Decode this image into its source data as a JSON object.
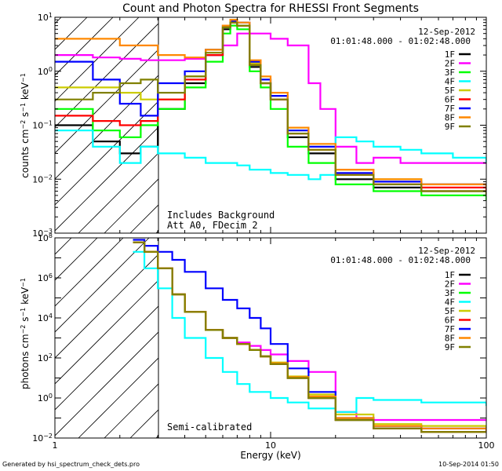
{
  "title": "Count and Photon Spectra for RHESSI Front Segments",
  "footer_left": "Generated by hsi_spectrum_check_dets.pro",
  "footer_right": "10-Sep-2014 01:50",
  "series_colors": {
    "1F": "#000000",
    "2F": "#ff00ff",
    "3F": "#00ff00",
    "4F": "#00ffff",
    "5F": "#cccc00",
    "6F": "#ff0000",
    "7F": "#0000ff",
    "8F": "#ff8800",
    "9F": "#808000"
  },
  "chart_data": [
    {
      "type": "line",
      "title": "Count and Photon Spectra for RHESSI Front Segments",
      "xlabel": "Energy (keV)",
      "ylabel": "counts cm^-2 s^-1 keV^-1",
      "xscale": "log",
      "yscale": "log",
      "xlim": [
        1,
        100
      ],
      "ylim": [
        0.001,
        10
      ],
      "x_ticks": [
        "1",
        "10",
        "100"
      ],
      "y_ticks": [
        "10^-3",
        "10^-2",
        "10^-1",
        "10^0",
        "10^1"
      ],
      "date": "12-Sep-2012",
      "time_range": "01:01:48.000 - 01:02:48.000",
      "annotations": [
        "Includes Background",
        "Att A0, FDecim 2"
      ],
      "shaded_region_keV": [
        1,
        3
      ],
      "legend": [
        "1F",
        "2F",
        "3F",
        "4F",
        "5F",
        "6F",
        "7F",
        "8F",
        "9F"
      ],
      "legend_position": "top-right",
      "series": [
        {
          "name": "1F",
          "x": [
            1,
            1.5,
            2,
            2.5,
            3,
            4,
            5,
            6,
            6.5,
            7,
            8,
            9,
            10,
            12,
            15,
            20,
            30,
            50,
            100
          ],
          "values": [
            0.1,
            0.05,
            0.03,
            0.04,
            0.2,
            0.6,
            2,
            6,
            8,
            7,
            1.2,
            0.6,
            0.3,
            0.06,
            0.03,
            0.01,
            0.007,
            0.006,
            0.005
          ]
        },
        {
          "name": "2F",
          "x": [
            1,
            1.5,
            2,
            2.5,
            3,
            4,
            5,
            6,
            7,
            8,
            10,
            12,
            15,
            17,
            20,
            25,
            30,
            40,
            50,
            70,
            100
          ],
          "values": [
            2,
            1.8,
            1.7,
            1.6,
            1.6,
            1.7,
            2,
            3,
            5,
            5,
            4,
            3,
            0.6,
            0.2,
            0.04,
            0.02,
            0.025,
            0.02,
            0.02,
            0.02,
            0.02
          ]
        },
        {
          "name": "3F",
          "x": [
            1,
            1.5,
            2,
            2.5,
            3,
            4,
            5,
            6,
            6.5,
            7,
            8,
            9,
            10,
            12,
            15,
            20,
            30,
            50,
            100
          ],
          "values": [
            0.2,
            0.08,
            0.06,
            0.1,
            0.2,
            0.5,
            1.5,
            5,
            7,
            6,
            1,
            0.5,
            0.2,
            0.04,
            0.02,
            0.008,
            0.006,
            0.005,
            0.004
          ]
        },
        {
          "name": "4F",
          "x": [
            1,
            1.5,
            2,
            2.5,
            3,
            4,
            5,
            6,
            7,
            8,
            10,
            12,
            15,
            17,
            20,
            25,
            30,
            40,
            50,
            70,
            100
          ],
          "values": [
            0.08,
            0.04,
            0.02,
            0.04,
            0.03,
            0.025,
            0.02,
            0.02,
            0.018,
            0.015,
            0.013,
            0.012,
            0.01,
            0.012,
            0.06,
            0.05,
            0.04,
            0.035,
            0.03,
            0.025,
            0.02
          ]
        },
        {
          "name": "5F",
          "x": [
            1,
            1.5,
            2,
            2.5,
            3,
            4,
            5,
            6,
            6.5,
            7,
            8,
            9,
            10,
            12,
            15,
            20,
            30,
            50,
            100
          ],
          "values": [
            0.5,
            0.5,
            0.4,
            0.3,
            0.3,
            0.8,
            2.5,
            7,
            8,
            7,
            1.4,
            0.7,
            0.35,
            0.08,
            0.04,
            0.015,
            0.01,
            0.008,
            0.007
          ]
        },
        {
          "name": "6F",
          "x": [
            1,
            1.5,
            2,
            2.5,
            3,
            4,
            5,
            6,
            6.5,
            7,
            8,
            9,
            10,
            12,
            15,
            20,
            30,
            50,
            100
          ],
          "values": [
            0.15,
            0.12,
            0.1,
            0.12,
            0.3,
            0.7,
            2,
            6.5,
            8,
            7,
            1.3,
            0.6,
            0.3,
            0.07,
            0.035,
            0.012,
            0.008,
            0.007,
            0.006
          ]
        },
        {
          "name": "7F",
          "x": [
            1,
            1.5,
            2,
            2.5,
            3,
            4,
            5,
            6,
            6.5,
            7,
            8,
            9,
            10,
            12,
            15,
            20,
            30,
            50,
            100
          ],
          "values": [
            1.5,
            0.7,
            0.25,
            0.15,
            0.6,
            1,
            2.5,
            7,
            8.5,
            8,
            1.5,
            0.7,
            0.35,
            0.08,
            0.04,
            0.013,
            0.009,
            0.008,
            0.007
          ]
        },
        {
          "name": "8F",
          "x": [
            1,
            1.5,
            2,
            2.5,
            3,
            4,
            5,
            6,
            6.5,
            7,
            8,
            9,
            10,
            12,
            15,
            20,
            30,
            50,
            100
          ],
          "values": [
            4,
            4,
            3,
            3,
            2,
            1.8,
            2.5,
            7,
            9,
            8,
            1.6,
            0.8,
            0.4,
            0.09,
            0.045,
            0.015,
            0.01,
            0.008,
            0.007
          ]
        },
        {
          "name": "9F",
          "x": [
            1,
            1.5,
            2,
            2.5,
            3,
            4,
            5,
            6,
            6.5,
            7,
            8,
            9,
            10,
            12,
            15,
            20,
            30,
            50,
            100
          ],
          "values": [
            0.3,
            0.4,
            0.6,
            0.7,
            0.4,
            0.8,
            2.2,
            6.5,
            8,
            7,
            1.3,
            0.6,
            0.3,
            0.07,
            0.035,
            0.012,
            0.008,
            0.006,
            0.005
          ]
        }
      ]
    },
    {
      "type": "line",
      "xlabel": "Energy (keV)",
      "ylabel": "photons cm^-2 s^-1 keV^-1",
      "xscale": "log",
      "yscale": "log",
      "xlim": [
        1,
        100
      ],
      "ylim": [
        0.01,
        100000000
      ],
      "x_ticks": [
        "1",
        "10",
        "100"
      ],
      "y_ticks": [
        "10^-2",
        "10^0",
        "10^2",
        "10^4",
        "10^6",
        "10^8"
      ],
      "date": "12-Sep-2012",
      "time_range": "01:01:48.000 - 01:02:48.000",
      "annotations": [
        "Semi-calibrated"
      ],
      "shaded_region_keV": [
        1,
        3
      ],
      "legend": [
        "1F",
        "2F",
        "3F",
        "4F",
        "5F",
        "6F",
        "7F",
        "8F",
        "9F"
      ],
      "legend_position": "top-right",
      "series": [
        {
          "name": "1F",
          "x": [
            2.3,
            2.6,
            3,
            3.5,
            4,
            5,
            6,
            7,
            8,
            9,
            10,
            12,
            15,
            20,
            30,
            50,
            100
          ],
          "values": [
            60000000,
            20000000,
            3000000,
            150000,
            20000,
            2500,
            1000,
            500,
            250,
            120,
            50,
            10,
            1,
            0.08,
            0.03,
            0.02,
            0.02
          ]
        },
        {
          "name": "2F",
          "x": [
            2.3,
            2.6,
            3,
            3.5,
            4,
            5,
            6,
            7,
            8,
            9,
            10,
            12,
            15,
            20,
            25,
            30,
            50,
            100
          ],
          "values": [
            60000000,
            20000000,
            3000000,
            150000,
            20000,
            2500,
            1000,
            600,
            400,
            250,
            150,
            70,
            20,
            0.2,
            0.1,
            0.08,
            0.08,
            0.07
          ]
        },
        {
          "name": "3F",
          "x": [
            2.3,
            2.6,
            3,
            3.5,
            4,
            5,
            6,
            7,
            8,
            9,
            10,
            12,
            15,
            20,
            30,
            50,
            100
          ],
          "values": [
            60000000,
            20000000,
            3000000,
            150000,
            20000,
            2500,
            1000,
            500,
            250,
            120,
            50,
            10,
            1,
            0.08,
            0.03,
            0.02,
            0.02
          ]
        },
        {
          "name": "4F",
          "x": [
            2.3,
            2.6,
            3,
            3.5,
            4,
            5,
            6,
            7,
            8,
            10,
            12,
            15,
            20,
            25,
            30,
            50,
            100
          ],
          "values": [
            20000000,
            3000000,
            300000,
            10000,
            1000,
            100,
            20,
            5,
            2,
            1,
            0.6,
            0.3,
            0.2,
            1,
            0.8,
            0.6,
            0.4
          ]
        },
        {
          "name": "5F",
          "x": [
            2.3,
            2.6,
            3,
            3.5,
            4,
            5,
            6,
            7,
            8,
            9,
            10,
            12,
            15,
            20,
            30,
            50,
            100
          ],
          "values": [
            60000000,
            20000000,
            3000000,
            150000,
            20000,
            2500,
            1000,
            500,
            250,
            120,
            60,
            12,
            1.5,
            0.15,
            0.05,
            0.04,
            0.03
          ]
        },
        {
          "name": "6F",
          "x": [
            2.3,
            2.6,
            3,
            3.5,
            4,
            5,
            6,
            7,
            8,
            9,
            10,
            12,
            15,
            20,
            30,
            50,
            100
          ],
          "values": [
            60000000,
            20000000,
            3000000,
            150000,
            20000,
            2500,
            1000,
            500,
            250,
            120,
            50,
            10,
            1,
            0.08,
            0.03,
            0.02,
            0.02
          ]
        },
        {
          "name": "7F",
          "x": [
            2.3,
            2.6,
            3,
            3.5,
            4,
            5,
            6,
            7,
            8,
            9,
            10,
            12,
            15,
            20,
            30,
            50,
            100
          ],
          "values": [
            80000000,
            40000000,
            20000000,
            8000000,
            2000000,
            300000,
            80000,
            30000,
            10000,
            3000,
            500,
            30,
            2,
            0.1,
            0.04,
            0.03,
            0.02
          ]
        },
        {
          "name": "8F",
          "x": [
            2.3,
            2.6,
            3,
            3.5,
            4,
            5,
            6,
            7,
            8,
            9,
            10,
            12,
            15,
            20,
            30,
            50,
            100
          ],
          "values": [
            60000000,
            20000000,
            3000000,
            150000,
            20000,
            2500,
            1000,
            500,
            250,
            120,
            55,
            11,
            1.2,
            0.1,
            0.04,
            0.03,
            0.02
          ]
        },
        {
          "name": "9F",
          "x": [
            2.3,
            2.6,
            3,
            3.5,
            4,
            5,
            6,
            7,
            8,
            9,
            10,
            12,
            15,
            20,
            30,
            50,
            100
          ],
          "values": [
            60000000,
            20000000,
            3000000,
            150000,
            20000,
            2500,
            1000,
            500,
            250,
            120,
            50,
            10,
            1,
            0.08,
            0.03,
            0.02,
            0.02
          ]
        }
      ]
    }
  ]
}
